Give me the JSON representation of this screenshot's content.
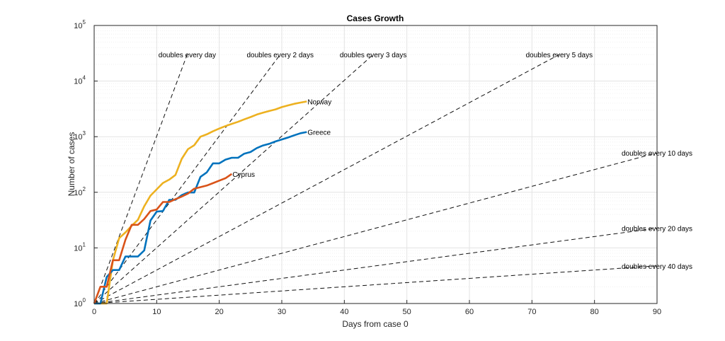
{
  "chart_data": {
    "type": "line",
    "title": "Cases Growth",
    "xlabel": "Days from case 0",
    "ylabel": "Number of cases",
    "yscale": "log",
    "xlim": [
      0,
      90
    ],
    "ylim": [
      1,
      100000
    ],
    "grid": true,
    "x_ticks": [
      "0",
      "10",
      "20",
      "30",
      "40",
      "50",
      "60",
      "70",
      "80",
      "90"
    ],
    "y_ticks": [
      {
        "base": "10",
        "exp": "0"
      },
      {
        "base": "10",
        "exp": "1"
      },
      {
        "base": "10",
        "exp": "2"
      },
      {
        "base": "10",
        "exp": "3"
      },
      {
        "base": "10",
        "exp": "4"
      },
      {
        "base": "10",
        "exp": "5"
      }
    ],
    "reference_lines": [
      {
        "label": "doubles every day",
        "doubling_days": 1
      },
      {
        "label": "doubles every 2 days",
        "doubling_days": 2
      },
      {
        "label": "doubles every 3 days",
        "doubling_days": 3
      },
      {
        "label": "doubles every 5 days",
        "doubling_days": 5
      },
      {
        "label": "doubles every 10 days",
        "doubling_days": 10
      },
      {
        "label": "doubles every 20 days",
        "doubling_days": 20
      },
      {
        "label": "doubles every 40 days",
        "doubling_days": 40
      }
    ],
    "series": [
      {
        "name": "Norway",
        "color": "#EDB120",
        "x": [
          0,
          1,
          2,
          3,
          4,
          5,
          6,
          7,
          8,
          9,
          10,
          11,
          12,
          13,
          14,
          15,
          16,
          17,
          18,
          19,
          20,
          21,
          22,
          23,
          24,
          25,
          26,
          27,
          28,
          29,
          30,
          31,
          32,
          33,
          34
        ],
        "y": [
          1,
          1,
          1,
          6,
          15,
          19,
          25,
          32,
          56,
          87,
          113,
          147,
          169,
          205,
          400,
          598,
          702,
          1000,
          1100,
          1250,
          1400,
          1550,
          1700,
          1850,
          2050,
          2250,
          2500,
          2700,
          2900,
          3100,
          3400,
          3650,
          3900,
          4100,
          4300
        ]
      },
      {
        "name": "Greece",
        "color": "#0072BD",
        "x": [
          0,
          1,
          2,
          3,
          4,
          5,
          6,
          7,
          8,
          9,
          10,
          11,
          12,
          13,
          14,
          15,
          16,
          17,
          18,
          19,
          20,
          21,
          22,
          23,
          24,
          25,
          26,
          27,
          28,
          29,
          30,
          31,
          32,
          33,
          34
        ],
        "y": [
          1,
          1,
          3,
          4,
          4,
          7,
          7,
          7,
          9,
          31,
          45,
          46,
          73,
          73,
          89,
          99,
          99,
          190,
          228,
          331,
          331,
          387,
          418,
          418,
          495,
          530,
          624,
          695,
          743,
          821,
          892,
          966,
          1061,
          1156,
          1212
        ]
      },
      {
        "name": "Cyprus",
        "color": "#D95319",
        "x": [
          0,
          1,
          2,
          3,
          4,
          5,
          6,
          7,
          8,
          9,
          10,
          11,
          12,
          13,
          14,
          15,
          16,
          17,
          18,
          19,
          20,
          21,
          22
        ],
        "y": [
          1,
          2,
          2,
          6,
          6,
          14,
          26,
          26,
          33,
          46,
          49,
          67,
          67,
          75,
          84,
          95,
          116,
          124,
          132,
          146,
          162,
          179,
          214
        ]
      }
    ]
  }
}
